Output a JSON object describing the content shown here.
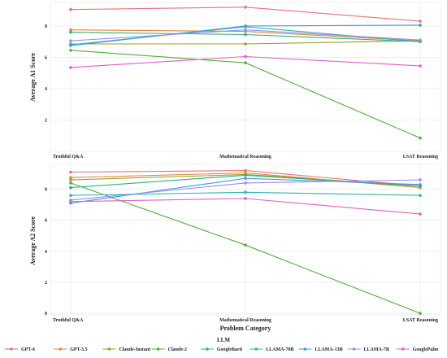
{
  "chart_data": [
    {
      "type": "line",
      "categories": [
        "Truthful Q&A",
        "Mathematical Reasoning",
        "LSAT Reasoning"
      ],
      "ylabel": "Average A1 Score",
      "xlabel": "",
      "ylim": [
        0,
        9.5
      ],
      "yticks": [
        2,
        4,
        6,
        8
      ],
      "grid": true,
      "series": [
        {
          "name": "GPT-4",
          "color": "#e8707d",
          "values": [
            9.05,
            9.2,
            8.3
          ]
        },
        {
          "name": "GPT-3.5",
          "color": "#d9893e",
          "values": [
            7.75,
            7.65,
            7.05
          ]
        },
        {
          "name": "Claude-Instant",
          "color": "#a39a2a",
          "values": [
            6.85,
            6.85,
            7.05
          ]
        },
        {
          "name": "Claude-2",
          "color": "#4fae38",
          "values": [
            6.45,
            5.65,
            0.85
          ]
        },
        {
          "name": "GoogleBard",
          "color": "#33b07a",
          "values": [
            7.6,
            7.45,
            7.0
          ]
        },
        {
          "name": "LLAMA-70B",
          "color": "#2fb3b3",
          "values": [
            6.8,
            7.95,
            7.0
          ]
        },
        {
          "name": "LLAMA-13B",
          "color": "#3a9de0",
          "values": [
            6.75,
            8.0,
            8.05
          ]
        },
        {
          "name": "LLAMA-7B",
          "color": "#9b8ae6",
          "values": [
            7.05,
            7.75,
            7.1
          ]
        },
        {
          "name": "GooglePalm",
          "color": "#e35fc8",
          "values": [
            5.35,
            6.05,
            5.45
          ]
        }
      ]
    },
    {
      "type": "line",
      "categories": [
        "Truthful Q&A",
        "Mathematical Reasoning",
        "LSAT Reasoning"
      ],
      "ylabel": "Average A2 Score",
      "xlabel": "Problem Category",
      "ylim": [
        -0.1,
        9.6
      ],
      "yticks": [
        0,
        2,
        4,
        6,
        8
      ],
      "grid": true,
      "series": [
        {
          "name": "GPT-4",
          "color": "#e8707d",
          "values": [
            9.1,
            9.2,
            8.2
          ]
        },
        {
          "name": "GPT-3.5",
          "color": "#d9893e",
          "values": [
            8.75,
            9.05,
            8.1
          ]
        },
        {
          "name": "Claude-Instant",
          "color": "#a39a2a",
          "values": [
            8.6,
            8.95,
            8.2
          ]
        },
        {
          "name": "Claude-2",
          "color": "#4fae38",
          "values": [
            8.4,
            4.4,
            0.0
          ]
        },
        {
          "name": "GoogleBard",
          "color": "#33b07a",
          "values": [
            8.1,
            8.9,
            8.2
          ]
        },
        {
          "name": "LLAMA-70B",
          "color": "#2fb3b3",
          "values": [
            7.6,
            7.8,
            7.6
          ]
        },
        {
          "name": "LLAMA-13B",
          "color": "#3a9de0",
          "values": [
            7.1,
            8.7,
            8.3
          ]
        },
        {
          "name": "LLAMA-7B",
          "color": "#9b8ae6",
          "values": [
            7.3,
            8.4,
            8.6
          ]
        },
        {
          "name": "GooglePalm",
          "color": "#e35fc8",
          "values": [
            7.2,
            7.4,
            6.4
          ]
        }
      ]
    }
  ],
  "legend": {
    "title": "LLM",
    "placement": "bottom",
    "items": [
      {
        "label": "GPT-4",
        "color": "#e8707d"
      },
      {
        "label": "GPT-3.5",
        "color": "#d9893e"
      },
      {
        "label": "Claude-Instant",
        "color": "#a39a2a"
      },
      {
        "label": "Claude-2",
        "color": "#4fae38"
      },
      {
        "label": "GoogleBard",
        "color": "#33b07a"
      },
      {
        "label": "LLAMA-70B",
        "color": "#2fb3b3"
      },
      {
        "label": "LLAMA-13B",
        "color": "#3a9de0"
      },
      {
        "label": "LLAMA-7B",
        "color": "#9b8ae6"
      },
      {
        "label": "GooglePalm",
        "color": "#e35fc8"
      }
    ]
  }
}
